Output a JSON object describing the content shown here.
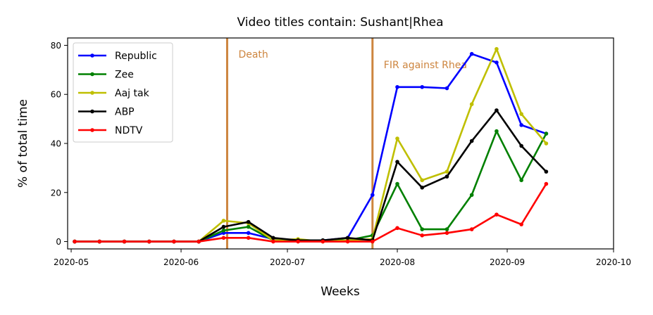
{
  "chart_data": {
    "type": "line",
    "title": "Video titles contain: Sushant|Rhea",
    "xlabel": "Weeks",
    "ylabel": "% of total time",
    "xlim": [
      "2020-04-30",
      "2020-10-01"
    ],
    "ylim": [
      -3,
      83
    ],
    "x_ticks": [
      "2020-05-01",
      "2020-06-01",
      "2020-07-01",
      "2020-08-01",
      "2020-09-01",
      "2020-10-01"
    ],
    "x_tick_labels": [
      "2020-05",
      "2020-06",
      "2020-07",
      "2020-08",
      "2020-09",
      "2020-10"
    ],
    "y_ticks": [
      0,
      20,
      40,
      60,
      80
    ],
    "grid": false,
    "legend_position": "top-left",
    "x": [
      "2020-05-02",
      "2020-05-09",
      "2020-05-16",
      "2020-05-23",
      "2020-05-30",
      "2020-06-06",
      "2020-06-13",
      "2020-06-20",
      "2020-06-27",
      "2020-07-04",
      "2020-07-11",
      "2020-07-18",
      "2020-07-25",
      "2020-08-01",
      "2020-08-08",
      "2020-08-15",
      "2020-08-22",
      "2020-08-29",
      "2020-09-05",
      "2020-09-12"
    ],
    "series": [
      {
        "name": "Republic",
        "color": "#0000ff",
        "values": [
          0,
          0,
          0,
          0,
          0,
          0,
          3.5,
          3.5,
          1,
          0.5,
          0.5,
          1.5,
          19,
          63,
          63,
          62.5,
          76.5,
          73,
          47.5,
          44
        ]
      },
      {
        "name": "Zee",
        "color": "#008000",
        "values": [
          0,
          0,
          0,
          0,
          0,
          0,
          4.5,
          6,
          0.5,
          0.5,
          0.5,
          0.5,
          2.5,
          23.5,
          5,
          5,
          19,
          45,
          25,
          44
        ]
      },
      {
        "name": "Aaj tak",
        "color": "#bfbf00",
        "values": [
          0,
          0,
          0,
          0,
          0,
          0,
          8.5,
          7.5,
          0.5,
          1,
          0,
          0.5,
          1,
          42,
          25,
          28.5,
          56,
          78.5,
          52,
          40
        ]
      },
      {
        "name": "ABP",
        "color": "#000000",
        "values": [
          0,
          0,
          0,
          0,
          0,
          0,
          6,
          8,
          1.5,
          0.5,
          0.5,
          1.5,
          0.5,
          32.5,
          22,
          26.5,
          41,
          53.5,
          39,
          28.5
        ]
      },
      {
        "name": "NDTV",
        "color": "#ff0000",
        "values": [
          0,
          0,
          0,
          0,
          0,
          0,
          1.5,
          1.5,
          0,
          0,
          0,
          0,
          0,
          5.5,
          2.5,
          3.5,
          5,
          11,
          7,
          23.5
        ]
      }
    ],
    "vlines": [
      {
        "x": "2020-06-14",
        "label": "Death",
        "color": "#cd853f"
      },
      {
        "x": "2020-07-25",
        "label": "FIR against Rhea",
        "color": "#cd853f"
      }
    ]
  }
}
